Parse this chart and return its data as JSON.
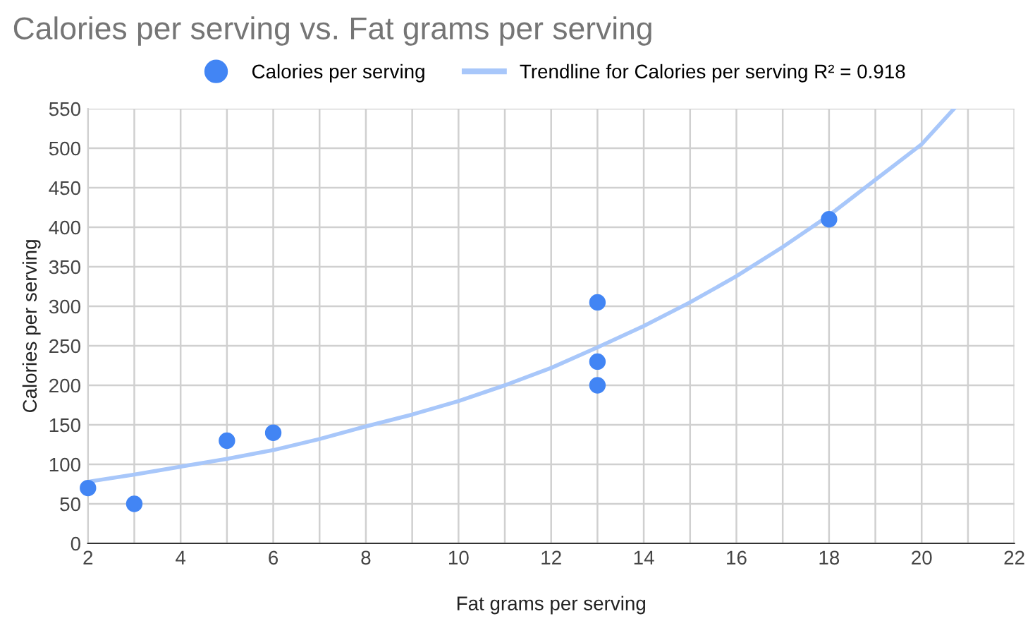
{
  "chart_data": {
    "type": "scatter",
    "title": "Calories per serving vs. Fat grams per serving",
    "xlabel": "Fat grams per serving",
    "ylabel": "Calories per serving",
    "series": [
      {
        "name": "Calories per serving",
        "marker": "circle",
        "color": "#4285f4",
        "x": [
          2,
          3,
          5,
          6,
          13,
          13,
          13,
          18
        ],
        "values": [
          70,
          50,
          130,
          140,
          305,
          230,
          200,
          410
        ]
      },
      {
        "name": "Trendline for Calories per serving R² = 0.918",
        "type": "line",
        "color": "#a8c7fa",
        "x": [
          2,
          3,
          4,
          5,
          6,
          7,
          8,
          9,
          10,
          11,
          12,
          13,
          14,
          15,
          16,
          17,
          18,
          19,
          20,
          20.7
        ],
        "values": [
          78,
          87,
          97,
          107,
          118,
          132,
          148,
          163,
          180,
          200,
          222,
          248,
          275,
          305,
          338,
          375,
          415,
          460,
          505,
          550
        ]
      }
    ],
    "xlim": [
      2,
      22
    ],
    "ylim": [
      0,
      550
    ],
    "xticks": [
      2,
      {
        "value": 3,
        "label": null
      },
      4,
      {
        "value": 5,
        "label": null
      },
      6,
      {
        "value": 7,
        "label": null
      },
      8,
      {
        "value": 9,
        "label": null
      },
      10,
      {
        "value": 11,
        "label": null
      },
      12,
      {
        "value": 13,
        "label": null
      },
      14,
      {
        "value": 15,
        "label": null
      },
      16,
      {
        "value": 17,
        "label": null
      },
      18,
      {
        "value": 19,
        "label": null
      },
      20,
      {
        "value": 21,
        "label": null
      },
      22
    ],
    "yticks": [
      0,
      50,
      100,
      150,
      200,
      250,
      300,
      350,
      400,
      450,
      500,
      550
    ],
    "grid": true,
    "legend": "top",
    "line_style": "solid"
  }
}
